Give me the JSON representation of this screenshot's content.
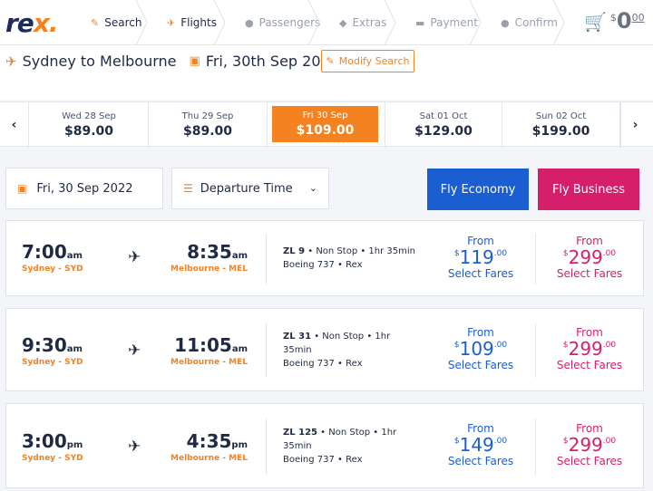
{
  "header": {
    "logo_left": "re",
    "logo_accent": "x",
    "logo_suffix": ".",
    "steps": [
      {
        "label": "Search",
        "active": true
      },
      {
        "label": "Flights",
        "active": true
      },
      {
        "label": "Passengers",
        "active": false
      },
      {
        "label": "Extras",
        "active": false
      },
      {
        "label": "Payment",
        "active": false
      },
      {
        "label": "Confirm",
        "active": false
      }
    ],
    "cart": {
      "currency": "$",
      "amount": "0",
      "cents": "00"
    }
  },
  "route": {
    "title": "Sydney to Melbourne",
    "date": "Fri, 30th Sep 2022",
    "modify_label": "Modify Search"
  },
  "dates": [
    {
      "label": "Wed 28 Sep",
      "price": "$89.00",
      "selected": false
    },
    {
      "label": "Thu 29 Sep",
      "price": "$89.00",
      "selected": false
    },
    {
      "label": "Fri 30 Sep",
      "price": "$109.00",
      "selected": true
    },
    {
      "label": "Sat 01 Oct",
      "price": "$129.00",
      "selected": false
    },
    {
      "label": "Sun 02 Oct",
      "price": "$199.00",
      "selected": false
    }
  ],
  "filters": {
    "date": "Fri, 30 Sep 2022",
    "sort": "Departure Time",
    "economy": {
      "prefix": "Fly",
      "name": "Economy"
    },
    "business": {
      "prefix": "Fly",
      "name": "Business"
    }
  },
  "flights": [
    {
      "dep_time": "7:00",
      "dep_suffix": "am",
      "dep_city": "Sydney - SYD",
      "arr_time": "8:35",
      "arr_suffix": "am",
      "arr_city": "Melbourne - MEL",
      "flight_no": "ZL 9",
      "info_line1": " • Non Stop • 1hr 35min",
      "info_line2": "Boeing 737 • Rex",
      "eco": {
        "from": "From",
        "currency": "$",
        "whole": "119",
        "cents": ".00",
        "select": "Select Fares"
      },
      "bus": {
        "from": "From",
        "currency": "$",
        "whole": "299",
        "cents": ".00",
        "select": "Select Fares"
      }
    },
    {
      "dep_time": "9:30",
      "dep_suffix": "am",
      "dep_city": "Sydney - SYD",
      "arr_time": "11:05",
      "arr_suffix": "am",
      "arr_city": "Melbourne - MEL",
      "flight_no": "ZL 31",
      "info_line1": " • Non Stop • 1hr 35min",
      "info_line2": "Boeing 737 • Rex",
      "eco": {
        "from": "From",
        "currency": "$",
        "whole": "109",
        "cents": ".00",
        "select": "Select Fares"
      },
      "bus": {
        "from": "From",
        "currency": "$",
        "whole": "299",
        "cents": ".00",
        "select": "Select Fares"
      }
    },
    {
      "dep_time": "3:00",
      "dep_suffix": "pm",
      "dep_city": "Sydney - SYD",
      "arr_time": "4:35",
      "arr_suffix": "pm",
      "arr_city": "Melbourne - MEL",
      "flight_no": "ZL 125",
      "info_line1": " • Non Stop • 1hr 35min",
      "info_line2": "Boeing 737 • Rex",
      "eco": {
        "from": "From",
        "currency": "$",
        "whole": "149",
        "cents": ".00",
        "select": "Select Fares"
      },
      "bus": {
        "from": "From",
        "currency": "$",
        "whole": "299",
        "cents": ".00",
        "select": "Select Fares"
      }
    }
  ],
  "colors": {
    "accent_orange": "#f58220",
    "economy_blue": "#1b5ed1",
    "business_pink": "#d61f6a",
    "text_navy": "#1f2a44"
  }
}
